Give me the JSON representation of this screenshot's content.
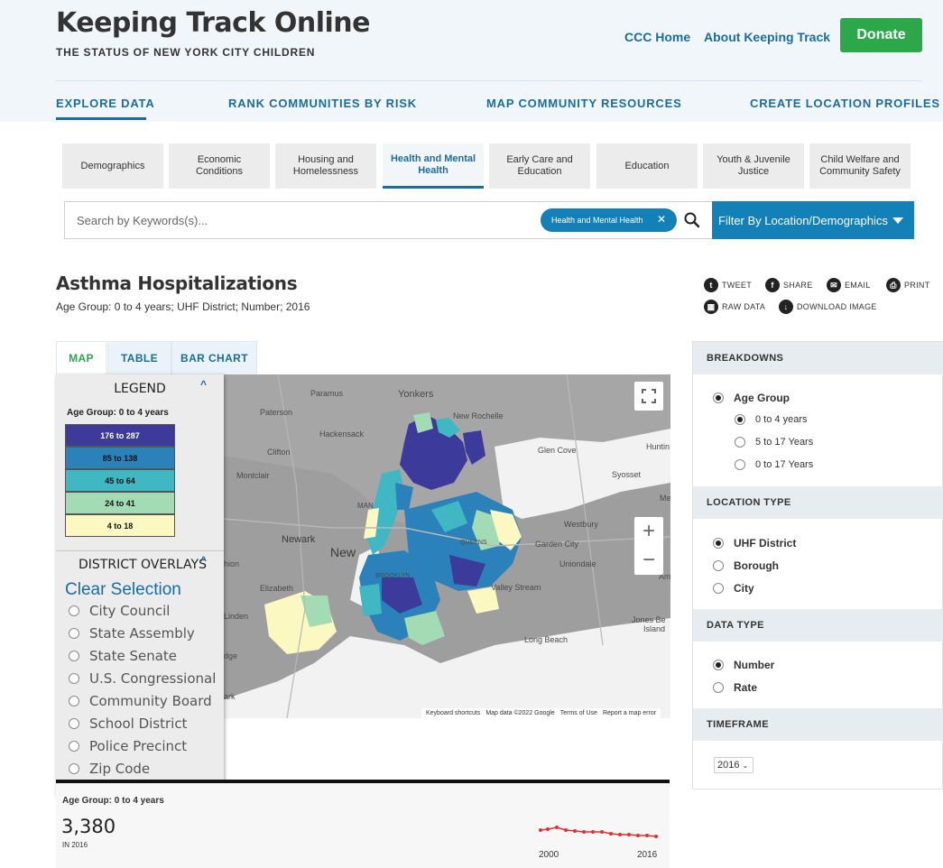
{
  "site": {
    "title": "Keeping Track Online",
    "subtitle": "THE STATUS OF NEW YORK CITY CHILDREN",
    "links": [
      "CCC Home",
      "About Keeping Track"
    ],
    "donate": "Donate"
  },
  "nav": [
    "EXPLORE DATA",
    "RANK COMMUNITIES BY RISK",
    "MAP COMMUNITY RESOURCES",
    "CREATE LOCATION PROFILES"
  ],
  "categories": [
    "Demographics",
    "Economic\nConditions",
    "Housing and\nHomelessness",
    "Health and Mental\nHealth",
    "Early Care and\nEducation",
    "Education",
    "Youth & Juvenile\nJustice",
    "Child Welfare and\nCommunity Safety"
  ],
  "search": {
    "placeholder": "Search by Keywords(s)...",
    "chip": "Health and Mental Health",
    "filter": "Filter By Location/Demographics"
  },
  "indicator": {
    "title": "Asthma Hospitalizations",
    "subtitle": "Age Group: 0 to 4 years; UHF District; Number; 2016"
  },
  "share": [
    "TWEET",
    "SHARE",
    "EMAIL",
    "PRINT",
    "RAW DATA",
    "DOWNLOAD IMAGE"
  ],
  "view_tabs": [
    "MAP",
    "TABLE",
    "BAR CHART"
  ],
  "legend": {
    "title": "LEGEND",
    "group": "Age Group: 0 to 4 years",
    "bins": [
      {
        "label": "176 to 287",
        "color": "#3c3a9a",
        "text": "#ffffff"
      },
      {
        "label": "85 to 138",
        "color": "#2b82bb",
        "text": "#111111"
      },
      {
        "label": "45 to 64",
        "color": "#3fb8c4",
        "text": "#111111"
      },
      {
        "label": "24 to 41",
        "color": "#a3dcb4",
        "text": "#111111"
      },
      {
        "label": "4 to 18",
        "color": "#fcf8c2",
        "text": "#111111"
      }
    ],
    "overlay_title": "DISTRICT OVERLAYS",
    "clear": "Clear Selection",
    "overlays": [
      "City Council",
      "State Assembly",
      "State Senate",
      "U.S. Congressional",
      "Community Board",
      "School District",
      "Police Precinct",
      "Zip Code"
    ]
  },
  "map": {
    "places": [
      "Paramus",
      "Yonkers",
      "Paterson",
      "New Rochelle",
      "Hackensack",
      "Clifton",
      "Montclair",
      "Glen Cove",
      "Huntin",
      "Syosset",
      "Me",
      "MAN",
      "Westbury",
      "Newark",
      "New",
      "Garden City",
      "Uniondale",
      "hion",
      "Amit",
      "Elizabeth",
      "BROOKLYN",
      "QUEENS",
      "Valley Stream",
      "Linden",
      "Jones Be",
      "Island",
      "Long Beach",
      "dge",
      "ark"
    ],
    "attribution": [
      "Keyboard shortcuts",
      "Map data ©2022 Google",
      "Terms of Use",
      "Report a map error"
    ]
  },
  "summary": {
    "group": "Age Group: 0 to 4 years",
    "value": "3,380",
    "sub": "IN 2016",
    "spark_start": "2000",
    "spark_end": "2016",
    "spark_color": "#e03030"
  },
  "panel": {
    "breakdowns": {
      "title": "BREAKDOWNS",
      "group": "Age Group",
      "options": [
        "0 to 4 years",
        "5 to 17 Years",
        "0 to 17 Years"
      ]
    },
    "location": {
      "title": "LOCATION TYPE",
      "options": [
        "UHF District",
        "Borough",
        "City"
      ]
    },
    "data_type": {
      "title": "DATA TYPE",
      "options": [
        "Number",
        "Rate"
      ]
    },
    "timeframe": {
      "title": "TIMEFRAME",
      "value": "2016"
    }
  }
}
